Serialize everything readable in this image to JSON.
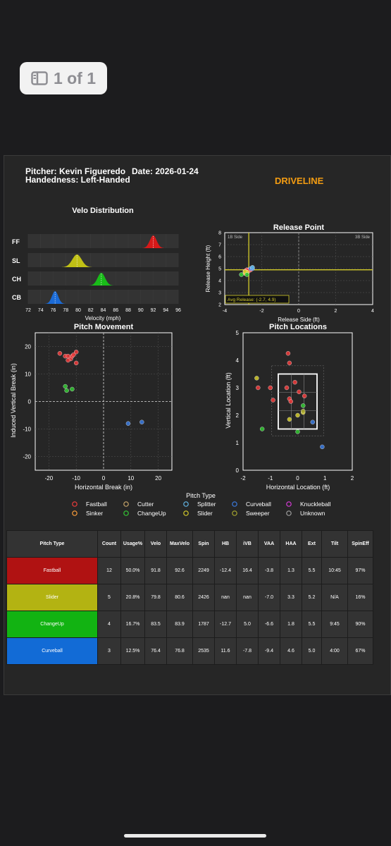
{
  "viewer": {
    "page_counter": "1 of 1"
  },
  "header": {
    "pitcher_line": "Pitcher: Kevin Figueredo",
    "date_line": "Date: 2026-01-24",
    "handedness_line": "Handedness: Left-Handed",
    "brand": "DRIVELINE"
  },
  "colors": {
    "Fastball": "#f03c3c",
    "Sinker": "#ff9f3a",
    "Cutter": "#c8a56a",
    "ChangeUp": "#34c934",
    "Splitter": "#62b6e6",
    "Slider": "#d4cc2a",
    "Curveball": "#3b7be0",
    "Sweeper": "#a6a62e",
    "Knuckleball": "#d63bd6",
    "Unknown": "#9e9e9e",
    "row_fastball": "#b01212",
    "row_slider": "#b3b312",
    "row_changeup": "#12b312",
    "row_curveball": "#126bd6"
  },
  "chart_data": [
    {
      "type": "density",
      "title": "Velo Distribution",
      "xlabel": "Velocity (mph)",
      "xlim": [
        72,
        96
      ],
      "xticks": [
        "72",
        "74",
        "76",
        "78",
        "80",
        "82",
        "84",
        "86",
        "88",
        "90",
        "92",
        "94",
        "96"
      ],
      "rows": [
        {
          "label": "FF",
          "pitch": "Fastball",
          "mean": 92.0,
          "sd": 0.55,
          "color": "#e01818"
        },
        {
          "label": "SL",
          "pitch": "Slider",
          "mean": 79.8,
          "sd": 0.75,
          "color": "#c8c814"
        },
        {
          "label": "CH",
          "pitch": "ChangeUp",
          "mean": 83.7,
          "sd": 0.6,
          "color": "#18c418"
        },
        {
          "label": "CB",
          "pitch": "Curveball",
          "mean": 76.3,
          "sd": 0.5,
          "color": "#1a6fe0"
        }
      ]
    },
    {
      "type": "scatter",
      "title": "Release Point",
      "xlabel": "Release Side (ft)",
      "ylabel": "Release Height (ft)",
      "xlim": [
        -4,
        4
      ],
      "ylim": [
        2,
        8
      ],
      "xticks": [
        "-4",
        "-2",
        "0",
        "2",
        "4"
      ],
      "yticks": [
        "2",
        "3",
        "4",
        "5",
        "6",
        "7",
        "8"
      ],
      "corner_left": "1B Side",
      "corner_right": "3B Side",
      "avg_label": "Avg Release: (-2.7, 4.9)",
      "avg": [
        -2.7,
        4.9
      ],
      "points": [
        {
          "x": -2.9,
          "y": 4.7,
          "p": "Fastball"
        },
        {
          "x": -2.8,
          "y": 4.8,
          "p": "Fastball"
        },
        {
          "x": -2.7,
          "y": 4.9,
          "p": "Fastball"
        },
        {
          "x": -2.6,
          "y": 4.9,
          "p": "Fastball"
        },
        {
          "x": -2.8,
          "y": 4.9,
          "p": "Fastball"
        },
        {
          "x": -2.7,
          "y": 4.8,
          "p": "Fastball"
        },
        {
          "x": -2.9,
          "y": 4.8,
          "p": "Fastball"
        },
        {
          "x": -2.75,
          "y": 4.85,
          "p": "Fastball"
        },
        {
          "x": -2.9,
          "y": 4.6,
          "p": "Sinker"
        },
        {
          "x": -2.8,
          "y": 4.7,
          "p": "Sinker"
        },
        {
          "x": -2.8,
          "y": 4.7,
          "p": "Slider"
        },
        {
          "x": -2.9,
          "y": 4.75,
          "p": "Slider"
        },
        {
          "x": -3.1,
          "y": 4.5,
          "p": "ChangeUp"
        },
        {
          "x": -2.8,
          "y": 4.5,
          "p": "ChangeUp"
        },
        {
          "x": -2.6,
          "y": 5.0,
          "p": "Curveball"
        },
        {
          "x": -2.5,
          "y": 5.0,
          "p": "Curveball"
        },
        {
          "x": -2.5,
          "y": 5.1,
          "p": "Splitter"
        }
      ]
    },
    {
      "type": "scatter",
      "title": "Pitch Movement",
      "xlabel": "Horizontal Break (in)",
      "ylabel": "Induced Vertical Break (in)",
      "xlim": [
        -25,
        25
      ],
      "ylim": [
        -25,
        25
      ],
      "xticks": [
        "-20",
        "-10",
        "0",
        "10",
        "20"
      ],
      "yticks": [
        "-20",
        "-10",
        "0",
        "10",
        "20"
      ],
      "points": [
        {
          "x": -16,
          "y": 17.5,
          "p": "Fastball"
        },
        {
          "x": -14,
          "y": 16.5,
          "p": "Fastball"
        },
        {
          "x": -13,
          "y": 16.5,
          "p": "Fastball"
        },
        {
          "x": -12,
          "y": 15.5,
          "p": "Fastball"
        },
        {
          "x": -13,
          "y": 15,
          "p": "Fastball"
        },
        {
          "x": -11.5,
          "y": 16.5,
          "p": "Fastball"
        },
        {
          "x": -10,
          "y": 18,
          "p": "Fastball"
        },
        {
          "x": -10,
          "y": 14,
          "p": "Fastball"
        },
        {
          "x": -11,
          "y": 17,
          "p": "Fastball"
        },
        {
          "x": -14,
          "y": 5.5,
          "p": "ChangeUp"
        },
        {
          "x": -13.5,
          "y": 4,
          "p": "ChangeUp"
        },
        {
          "x": -11.5,
          "y": 4.5,
          "p": "ChangeUp"
        },
        {
          "x": 9,
          "y": -8,
          "p": "Curveball"
        },
        {
          "x": 14,
          "y": -7.5,
          "p": "Curveball"
        }
      ]
    },
    {
      "type": "scatter",
      "title": "Pitch Locations",
      "xlabel": "Horizontal Location (ft)",
      "ylabel": "Vertical Location (ft)",
      "xlim": [
        -2,
        2
      ],
      "ylim": [
        0,
        5
      ],
      "xticks": [
        "-2",
        "-1",
        "0",
        "1",
        "2"
      ],
      "yticks": [
        "0",
        "1",
        "2",
        "3",
        "4",
        "5"
      ],
      "points": [
        {
          "x": -0.35,
          "y": 4.25,
          "p": "Fastball"
        },
        {
          "x": -0.3,
          "y": 3.9,
          "p": "Fastball"
        },
        {
          "x": -1.45,
          "y": 3.0,
          "p": "Fastball"
        },
        {
          "x": -1.0,
          "y": 3.0,
          "p": "Fastball"
        },
        {
          "x": -0.4,
          "y": 3.0,
          "p": "Fastball"
        },
        {
          "x": -0.1,
          "y": 3.2,
          "p": "Fastball"
        },
        {
          "x": 0.05,
          "y": 2.85,
          "p": "Fastball"
        },
        {
          "x": 0.25,
          "y": 2.7,
          "p": "Fastball"
        },
        {
          "x": -0.9,
          "y": 2.55,
          "p": "Fastball"
        },
        {
          "x": -0.3,
          "y": 2.6,
          "p": "Fastball"
        },
        {
          "x": -0.25,
          "y": 2.5,
          "p": "Fastball"
        },
        {
          "x": -1.5,
          "y": 3.35,
          "p": "Slider"
        },
        {
          "x": 0.2,
          "y": 2.1,
          "p": "Slider"
        },
        {
          "x": -0.3,
          "y": 1.85,
          "p": "Slider"
        },
        {
          "x": 0.0,
          "y": 2.0,
          "p": "Slider"
        },
        {
          "x": -1.3,
          "y": 1.5,
          "p": "ChangeUp"
        },
        {
          "x": 0.2,
          "y": 2.35,
          "p": "ChangeUp"
        },
        {
          "x": 0.0,
          "y": 1.4,
          "p": "ChangeUp"
        },
        {
          "x": 0.2,
          "y": 2.15,
          "p": "Sweeper"
        },
        {
          "x": 0.55,
          "y": 1.75,
          "p": "Curveball"
        },
        {
          "x": 0.9,
          "y": 0.85,
          "p": "Curveball"
        }
      ]
    }
  ],
  "legend": {
    "title": "Pitch Type",
    "items": [
      "Fastball",
      "Cutter",
      "Splitter",
      "Curveball",
      "Knuckleball",
      "Sinker",
      "ChangeUp",
      "Slider",
      "Sweeper",
      "Unknown"
    ]
  },
  "table": {
    "headers": [
      "Pitch Type",
      "Count",
      "Usage%",
      "Velo",
      "MaxVelo",
      "Spin",
      "HB",
      "iVB",
      "VAA",
      "HAA",
      "Ext",
      "Tilt",
      "SpinEff"
    ],
    "rows": [
      {
        "pitch": "Fastball",
        "color": "#b01212",
        "cells": [
          "12",
          "50.0%",
          "91.8",
          "92.6",
          "2249",
          "-12.4",
          "16.4",
          "-3.8",
          "1.3",
          "5.5",
          "10:45",
          "97%"
        ]
      },
      {
        "pitch": "Slider",
        "color": "#b3b312",
        "cells": [
          "5",
          "20.8%",
          "79.8",
          "80.6",
          "2426",
          "nan",
          "nan",
          "-7.0",
          "3.3",
          "5.2",
          "N/A",
          "16%"
        ]
      },
      {
        "pitch": "ChangeUp",
        "color": "#12b312",
        "cells": [
          "4",
          "16.7%",
          "83.5",
          "83.9",
          "1787",
          "-12.7",
          "5.0",
          "-6.6",
          "1.8",
          "5.5",
          "9:45",
          "90%"
        ]
      },
      {
        "pitch": "Curveball",
        "color": "#126bd6",
        "cells": [
          "3",
          "12.5%",
          "76.4",
          "76.8",
          "2535",
          "11.6",
          "-7.8",
          "-9.4",
          "4.6",
          "5.0",
          "4:00",
          "67%"
        ]
      }
    ]
  }
}
